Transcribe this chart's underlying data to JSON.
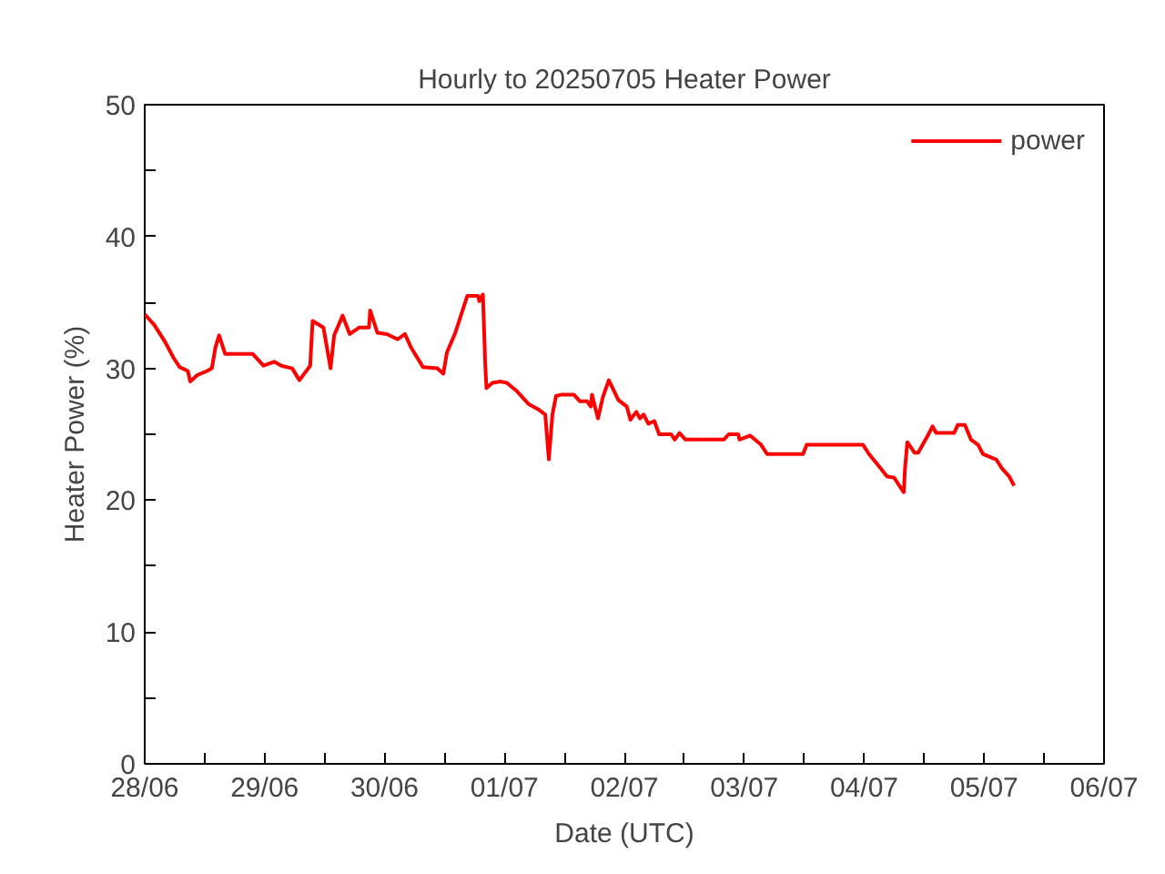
{
  "chart_data": {
    "type": "line",
    "title": "Hourly to 20250705 Heater Power",
    "xlabel": "Date (UTC)",
    "ylabel": "Heater Power (%)",
    "xlim": [
      "2025-06-28",
      "2025-07-06"
    ],
    "ylim": [
      0,
      50
    ],
    "xticks": [
      {
        "value": "2025-06-28",
        "label": "28/06"
      },
      {
        "value": "2025-06-28T12:00",
        "label": null
      },
      {
        "value": "2025-06-29",
        "label": "29/06"
      },
      {
        "value": "2025-06-29T12:00",
        "label": null
      },
      {
        "value": "2025-06-30",
        "label": "30/06"
      },
      {
        "value": "2025-06-30T12:00",
        "label": null
      },
      {
        "value": "2025-07-01",
        "label": "01/07"
      },
      {
        "value": "2025-07-01T12:00",
        "label": null
      },
      {
        "value": "2025-07-02",
        "label": "02/07"
      },
      {
        "value": "2025-07-02T12:00",
        "label": null
      },
      {
        "value": "2025-07-03",
        "label": "03/07"
      },
      {
        "value": "2025-07-03T12:00",
        "label": null
      },
      {
        "value": "2025-07-04",
        "label": "04/07"
      },
      {
        "value": "2025-07-04T12:00",
        "label": null
      },
      {
        "value": "2025-07-05",
        "label": "05/07"
      },
      {
        "value": "2025-07-05T12:00",
        "label": null
      },
      {
        "value": "2025-07-06",
        "label": "06/07"
      }
    ],
    "yticks": [
      0,
      {
        "value": 5,
        "label": null
      },
      10,
      {
        "value": 15,
        "label": null
      },
      20,
      {
        "value": 25,
        "label": null
      },
      30,
      {
        "value": 35,
        "label": null
      },
      40,
      {
        "value": 45,
        "label": null
      },
      50
    ],
    "grid": false,
    "legend": "top right",
    "marker": "none",
    "line_style": "solid",
    "series": [
      {
        "name": "power",
        "color": "#ff0000",
        "x": [
          "2025-06-28T00:00",
          "2025-06-28T01:55",
          "2025-06-28T04:05",
          "2025-06-28T05:46",
          "2025-06-28T06:58",
          "2025-06-28T08:38",
          "2025-06-28T09:07",
          "2025-06-28T10:34",
          "2025-06-28T12:29",
          "2025-06-28T13:26",
          "2025-06-28T14:10",
          "2025-06-28T14:53",
          "2025-06-28T16:05",
          "2025-06-28T21:36",
          "2025-06-28T23:46",
          "2025-06-29T01:55",
          "2025-06-29T03:22",
          "2025-06-29T05:31",
          "2025-06-29T06:58",
          "2025-06-29T09:07",
          "2025-06-29T09:36",
          "2025-06-29T11:46",
          "2025-06-29T13:12",
          "2025-06-29T13:55",
          "2025-06-29T15:36",
          "2025-06-29T17:02",
          "2025-06-29T18:58",
          "2025-06-29T20:53",
          "2025-06-29T21:07",
          "2025-06-29T22:34",
          "2025-06-30T00:29",
          "2025-06-30T02:38",
          "2025-06-30T04:05",
          "2025-06-30T05:17",
          "2025-06-30T07:41",
          "2025-06-30T10:34",
          "2025-06-30T11:46",
          "2025-06-30T12:29",
          "2025-06-30T14:10",
          "2025-06-30T15:22",
          "2025-06-30T16:34",
          "2025-06-30T18:43",
          "2025-06-30T18:58",
          "2025-06-30T19:41",
          "2025-06-30T20:10",
          "2025-06-30T20:24",
          "2025-06-30T21:36",
          "2025-06-30T23:17",
          "2025-07-01T00:29",
          "2025-07-01T02:24",
          "2025-07-01T04:48",
          "2025-07-01T06:43",
          "2025-07-01T08:10",
          "2025-07-01T08:53",
          "2025-07-01T09:36",
          "2025-07-01T10:19",
          "2025-07-01T11:17",
          "2025-07-01T13:55",
          "2025-07-01T15:07",
          "2025-07-01T16:34",
          "2025-07-01T17:17",
          "2025-07-01T17:31",
          "2025-07-01T18:43",
          "2025-07-01T19:41",
          "2025-07-01T20:53",
          "2025-07-01T22:48",
          "2025-07-02T00:29",
          "2025-07-02T01:12",
          "2025-07-02T02:24",
          "2025-07-02T03:07",
          "2025-07-02T03:50",
          "2025-07-02T04:48",
          "2025-07-02T06:00",
          "2025-07-02T06:58",
          "2025-07-02T09:22",
          "2025-07-02T10:05",
          "2025-07-02T11:02",
          "2025-07-02T12:14",
          "2025-07-02T19:55",
          "2025-07-02T20:53",
          "2025-07-02T22:48",
          "2025-07-02T23:02",
          "2025-07-03T01:12",
          "2025-07-03T03:22",
          "2025-07-03T04:34",
          "2025-07-03T11:46",
          "2025-07-03T12:29",
          "2025-07-03T23:46",
          "2025-07-04T00:58",
          "2025-07-04T03:07",
          "2025-07-04T04:34",
          "2025-07-04T06:00",
          "2025-07-04T07:12",
          "2025-07-04T07:55",
          "2025-07-04T08:10",
          "2025-07-04T08:38",
          "2025-07-04T10:05",
          "2025-07-04T10:48",
          "2025-07-04T12:43",
          "2025-07-04T13:41",
          "2025-07-04T14:24",
          "2025-07-04T18:00",
          "2025-07-04T18:43",
          "2025-07-04T20:10",
          "2025-07-04T21:22",
          "2025-07-04T22:48",
          "2025-07-04T23:46",
          "2025-07-05T01:41",
          "2025-07-05T02:24",
          "2025-07-05T03:36",
          "2025-07-05T05:02",
          "2025-07-05T06:00"
        ],
        "values": [
          34.1,
          33.3,
          32,
          30.8,
          30.1,
          29.8,
          29.0,
          29.5,
          29.8,
          30.0,
          31.6,
          32.5,
          31.1,
          31.1,
          30.2,
          30.5,
          30.2,
          30.0,
          29.1,
          30.2,
          33.6,
          33.1,
          30.0,
          32.5,
          34.0,
          32.6,
          33.1,
          33.1,
          34.4,
          32.7,
          32.6,
          32.2,
          32.6,
          31.6,
          30.1,
          30.0,
          29.6,
          31.2,
          32.7,
          34.1,
          35.5,
          35.5,
          35.1,
          35.6,
          30.2,
          28.5,
          28.9,
          29.0,
          28.9,
          28.3,
          27.3,
          26.9,
          26.5,
          23.1,
          26.5,
          27.9,
          28.0,
          28.0,
          27.5,
          27.5,
          27.1,
          28.0,
          26.2,
          27.8,
          29.1,
          27.6,
          27.1,
          26.1,
          26.7,
          26.2,
          26.5,
          25.8,
          26.0,
          25.0,
          25.0,
          24.6,
          25.1,
          24.6,
          24.6,
          25.0,
          25.0,
          24.6,
          24.9,
          24.2,
          23.5,
          23.5,
          24.2,
          24.2,
          23.5,
          22.5,
          21.8,
          21.7,
          21.0,
          20.6,
          22.4,
          24.4,
          23.6,
          23.6,
          24.9,
          25.6,
          25.1,
          25.1,
          25.7,
          25.7,
          24.6,
          24.2,
          23.5,
          23.2,
          23.1,
          22.4,
          21.8,
          21.1
        ]
      }
    ]
  }
}
